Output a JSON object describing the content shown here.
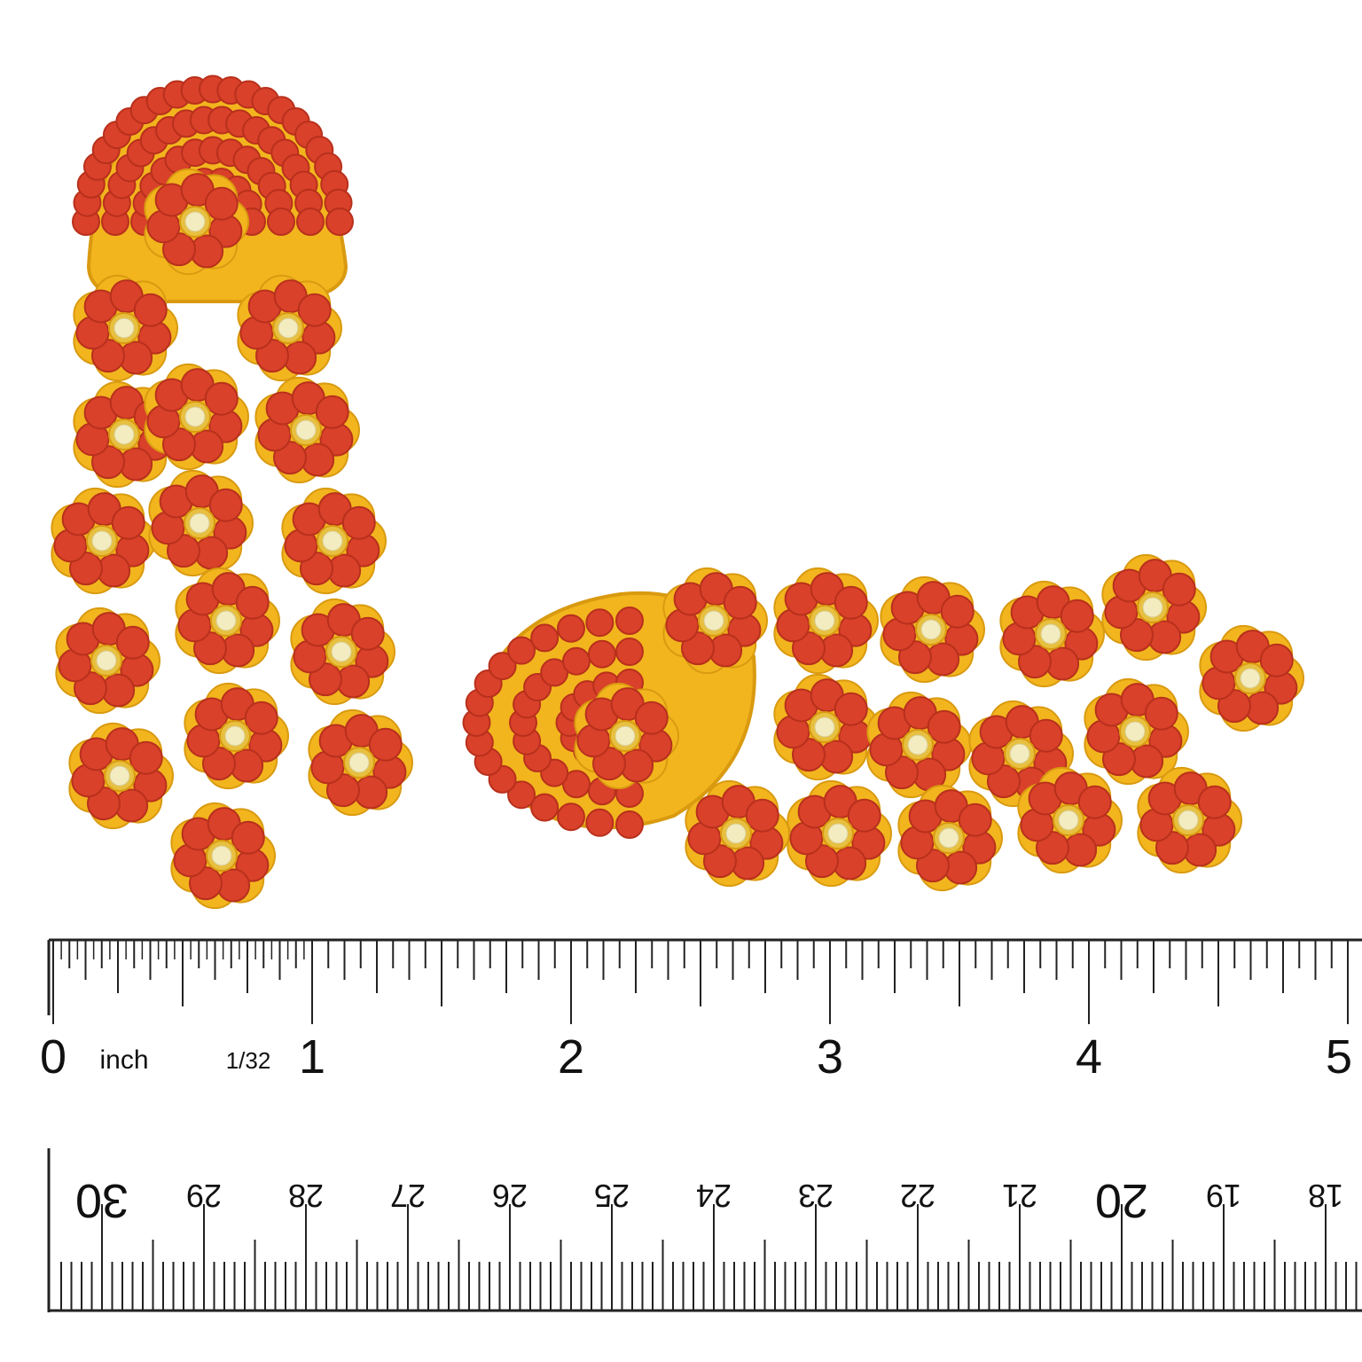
{
  "ruler": {
    "inch_labels": [
      "0",
      "1",
      "2",
      "3",
      "4",
      "5"
    ],
    "unit": "inch",
    "fraction": "1/32",
    "cm_labels": [
      "30",
      "29",
      "28",
      "27",
      "26",
      "25",
      "24",
      "23",
      "22",
      "21",
      "20",
      "19",
      "18"
    ]
  }
}
